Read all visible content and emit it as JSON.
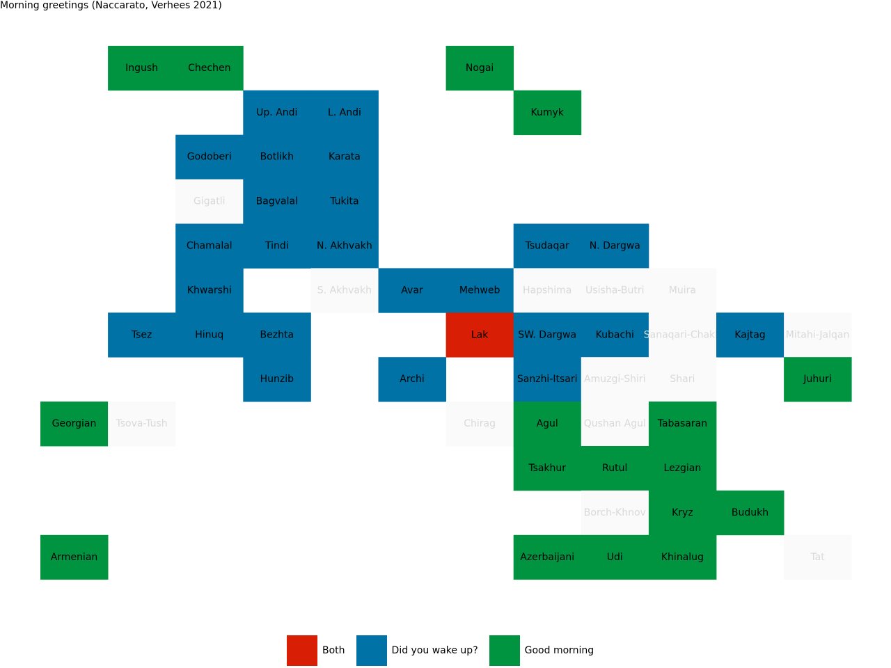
{
  "chart_data": {
    "type": "heatmap",
    "title": "Morning greetings (Naccarato, Verhees 2021)",
    "categories": {
      "both": {
        "label": "Both",
        "color": "#d81e05"
      },
      "wake": {
        "label": "Did you wake up?",
        "color": "#0072a5"
      },
      "good": {
        "label": "Good morning",
        "color": "#009440"
      },
      "none": {
        "label": "",
        "color": "#fafafa"
      }
    },
    "legend_order": [
      "both",
      "wake",
      "good"
    ],
    "legend_placement": "bottom-center",
    "cells": [
      {
        "name": "Ingush",
        "row": 1,
        "col": 1,
        "cat": "good"
      },
      {
        "name": "Chechen",
        "row": 1,
        "col": 2,
        "cat": "good"
      },
      {
        "name": "Nogai",
        "row": 1,
        "col": 6,
        "cat": "good"
      },
      {
        "name": "Up. Andi",
        "row": 2,
        "col": 3,
        "cat": "wake"
      },
      {
        "name": "L. Andi",
        "row": 2,
        "col": 4,
        "cat": "wake"
      },
      {
        "name": "Kumyk",
        "row": 2,
        "col": 7,
        "cat": "good"
      },
      {
        "name": "Godoberi",
        "row": 3,
        "col": 2,
        "cat": "wake"
      },
      {
        "name": "Botlikh",
        "row": 3,
        "col": 3,
        "cat": "wake"
      },
      {
        "name": "Karata",
        "row": 3,
        "col": 4,
        "cat": "wake"
      },
      {
        "name": "Gigatli",
        "row": 4,
        "col": 2,
        "cat": "none"
      },
      {
        "name": "Bagvalal",
        "row": 4,
        "col": 3,
        "cat": "wake"
      },
      {
        "name": "Tukita",
        "row": 4,
        "col": 4,
        "cat": "wake"
      },
      {
        "name": "Chamalal",
        "row": 5,
        "col": 2,
        "cat": "wake"
      },
      {
        "name": "Tindi",
        "row": 5,
        "col": 3,
        "cat": "wake"
      },
      {
        "name": "N. Akhvakh",
        "row": 5,
        "col": 4,
        "cat": "wake"
      },
      {
        "name": "Tsudaqar",
        "row": 5,
        "col": 7,
        "cat": "wake"
      },
      {
        "name": "N. Dargwa",
        "row": 5,
        "col": 8,
        "cat": "wake"
      },
      {
        "name": "Khwarshi",
        "row": 6,
        "col": 2,
        "cat": "wake"
      },
      {
        "name": "S. Akhvakh",
        "row": 6,
        "col": 4,
        "cat": "none"
      },
      {
        "name": "Avar",
        "row": 6,
        "col": 5,
        "cat": "wake"
      },
      {
        "name": "Mehweb",
        "row": 6,
        "col": 6,
        "cat": "wake"
      },
      {
        "name": "Hapshima",
        "row": 6,
        "col": 7,
        "cat": "none"
      },
      {
        "name": "Usisha-Butri",
        "row": 6,
        "col": 8,
        "cat": "none"
      },
      {
        "name": "Muira",
        "row": 6,
        "col": 9,
        "cat": "none"
      },
      {
        "name": "Tsez",
        "row": 7,
        "col": 1,
        "cat": "wake"
      },
      {
        "name": "Hinuq",
        "row": 7,
        "col": 2,
        "cat": "wake"
      },
      {
        "name": "Bezhta",
        "row": 7,
        "col": 3,
        "cat": "wake"
      },
      {
        "name": "Lak",
        "row": 7,
        "col": 6,
        "cat": "both"
      },
      {
        "name": "SW. Dargwa",
        "row": 7,
        "col": 7,
        "cat": "wake"
      },
      {
        "name": "Kubachi",
        "row": 7,
        "col": 8,
        "cat": "wake"
      },
      {
        "name": "Sanaqari-Chakh",
        "row": 7,
        "col": 9,
        "cat": "none"
      },
      {
        "name": "Kajtag",
        "row": 7,
        "col": 10,
        "cat": "wake"
      },
      {
        "name": "Mitahi-Jalqan",
        "row": 7,
        "col": 11,
        "cat": "none"
      },
      {
        "name": "Hunzib",
        "row": 8,
        "col": 3,
        "cat": "wake"
      },
      {
        "name": "Archi",
        "row": 8,
        "col": 5,
        "cat": "wake"
      },
      {
        "name": "Sanzhi-Itsari",
        "row": 8,
        "col": 7,
        "cat": "wake"
      },
      {
        "name": "Amuzgi-Shiri",
        "row": 8,
        "col": 8,
        "cat": "none"
      },
      {
        "name": "Shari",
        "row": 8,
        "col": 9,
        "cat": "none"
      },
      {
        "name": "Juhuri",
        "row": 8,
        "col": 11,
        "cat": "good"
      },
      {
        "name": "Georgian",
        "row": 9,
        "col": 0,
        "cat": "good"
      },
      {
        "name": "Tsova-Tush",
        "row": 9,
        "col": 1,
        "cat": "none"
      },
      {
        "name": "Chirag",
        "row": 9,
        "col": 6,
        "cat": "none"
      },
      {
        "name": "Agul",
        "row": 9,
        "col": 7,
        "cat": "good"
      },
      {
        "name": "Qushan Agul",
        "row": 9,
        "col": 8,
        "cat": "none"
      },
      {
        "name": "Tabasaran",
        "row": 9,
        "col": 9,
        "cat": "good"
      },
      {
        "name": "Tsakhur",
        "row": 10,
        "col": 7,
        "cat": "good"
      },
      {
        "name": "Rutul",
        "row": 10,
        "col": 8,
        "cat": "good"
      },
      {
        "name": "Lezgian",
        "row": 10,
        "col": 9,
        "cat": "good"
      },
      {
        "name": "Borch-Khnov",
        "row": 11,
        "col": 8,
        "cat": "none"
      },
      {
        "name": "Kryz",
        "row": 11,
        "col": 9,
        "cat": "good"
      },
      {
        "name": "Budukh",
        "row": 11,
        "col": 10,
        "cat": "good"
      },
      {
        "name": "Armenian",
        "row": 12,
        "col": 0,
        "cat": "good"
      },
      {
        "name": "Azerbaijani",
        "row": 12,
        "col": 7,
        "cat": "good"
      },
      {
        "name": "Udi",
        "row": 12,
        "col": 8,
        "cat": "good"
      },
      {
        "name": "Khinalug",
        "row": 12,
        "col": 9,
        "cat": "good"
      },
      {
        "name": "Tat",
        "row": 12,
        "col": 11,
        "cat": "none"
      }
    ]
  }
}
